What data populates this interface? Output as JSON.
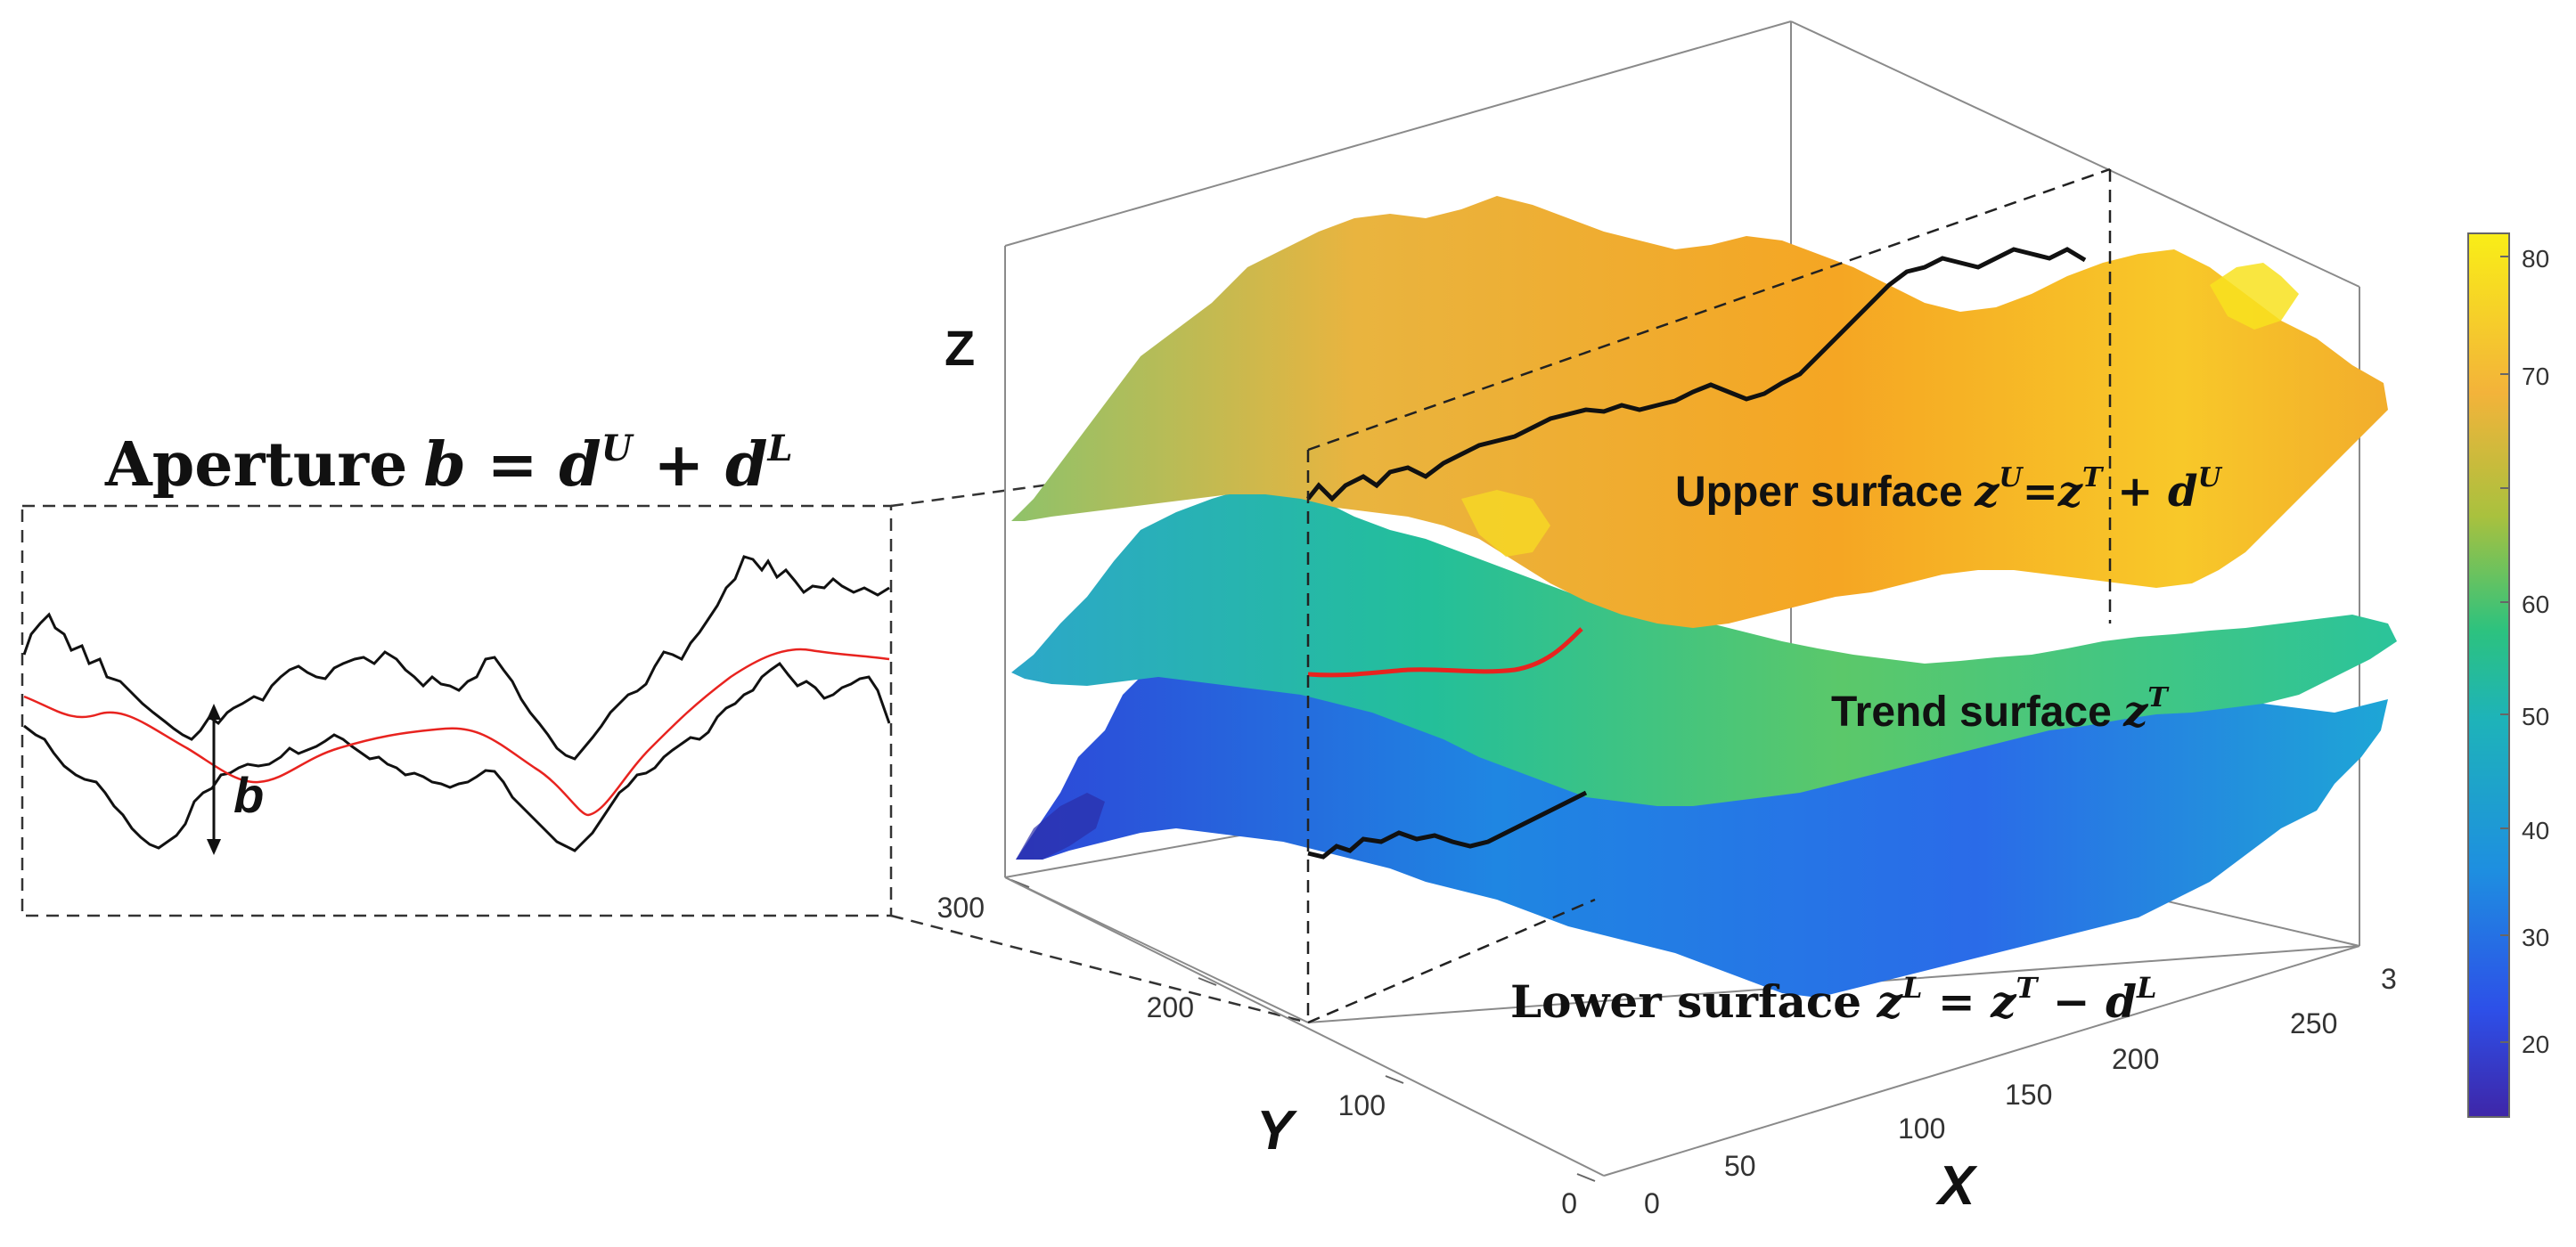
{
  "inset": {
    "title_word": "Aperture",
    "title_eq_lhs": "b",
    "title_eq_op1": " = ",
    "title_eq_d1": "d",
    "title_eq_sup1": "U",
    "title_eq_op2": " + ",
    "title_eq_d2": "d",
    "title_eq_sup2": "L",
    "b_label": "b"
  },
  "plot3d": {
    "z_axis_label": "Z",
    "y_axis_label": "Y",
    "x_axis_label": "X",
    "y_ticks": [
      "0",
      "100",
      "200",
      "300"
    ],
    "x_ticks": [
      "0",
      "50",
      "100",
      "150",
      "200",
      "250",
      "3"
    ],
    "upper_label": {
      "text": "Upper surface ",
      "z": "z",
      "sup_u": "U",
      "eq": "=z",
      "sup_t": "T",
      "plus": " + d",
      "sup_u2": "U"
    },
    "trend_label": {
      "text": "Trend surface ",
      "z": "z",
      "sup_t": "T"
    },
    "lower_label": {
      "text": "Lower surface ",
      "z": "z",
      "sup_l": "L",
      "eq": " = z",
      "sup_t": "T",
      "minus": " − d",
      "sup_l2": "L"
    }
  },
  "colorbar": {
    "ticks": [
      "20",
      "30",
      "40",
      "50",
      "60",
      "70",
      "80"
    ],
    "colors": [
      "#3e26a8",
      "#2d6ae8",
      "#1e9fd8",
      "#1ebc8f",
      "#5cc45c",
      "#d4b52f",
      "#f5a623",
      "#f9e91a"
    ]
  },
  "colors": {
    "upper_surface": "#f3b53a",
    "trend_surface": "#2fbf9a",
    "lower_surface": "#2b8be0",
    "profile_mid": "#e8231f"
  }
}
